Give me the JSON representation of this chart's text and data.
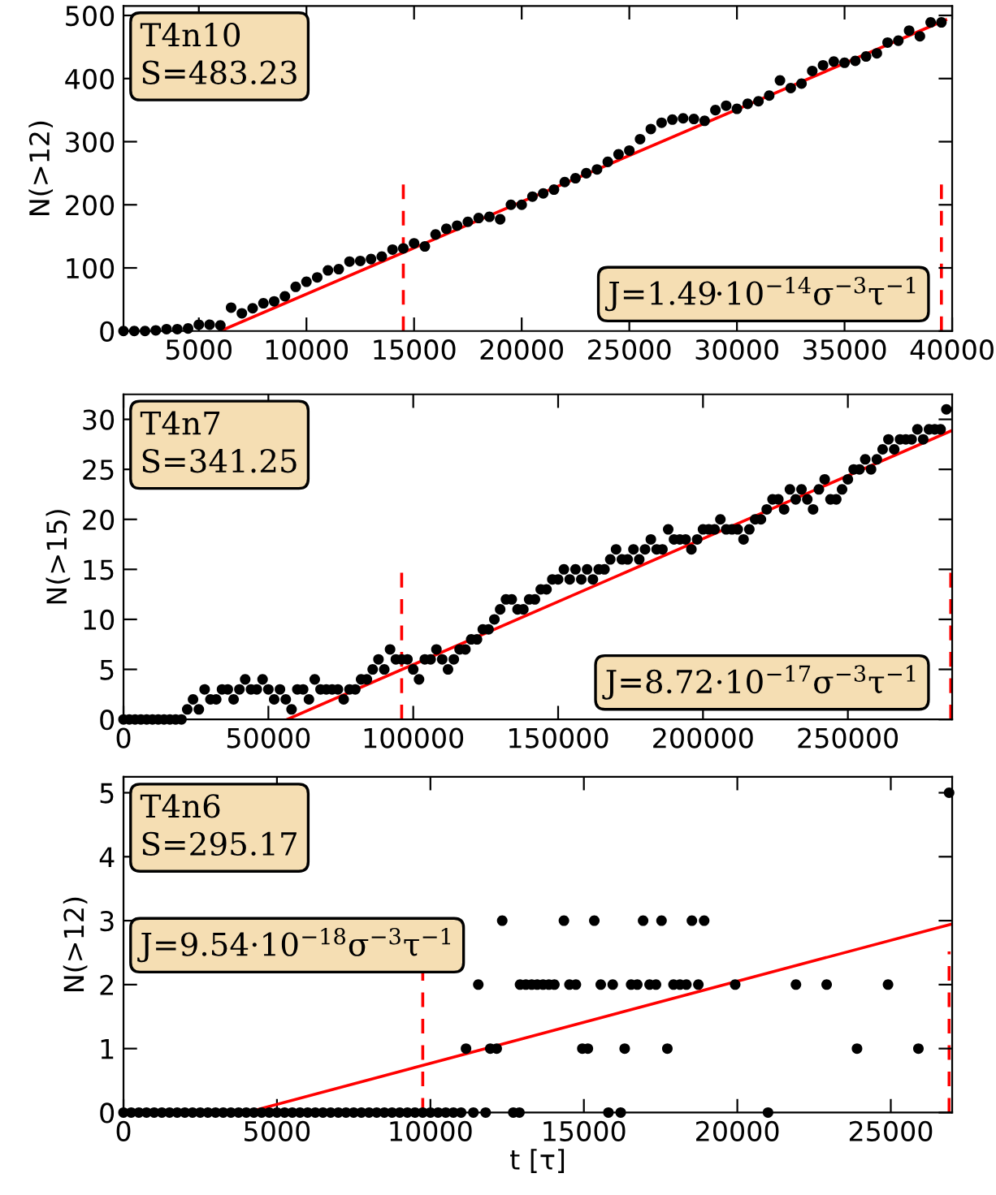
{
  "chart_data": [
    {
      "type": "scatter",
      "ylabel": "N(>12)",
      "annotations": [
        "T4n10\nS=483.23",
        "J=1.49·10$^{−14}$σ$^{−3}$τ$^{−1}$"
      ],
      "xlim": [
        1500,
        40000
      ],
      "ylim": [
        0,
        515
      ],
      "xticks": [
        5000,
        10000,
        15000,
        20000,
        25000,
        30000,
        35000,
        40000
      ],
      "yticks": [
        0,
        100,
        200,
        300,
        400,
        500
      ],
      "ref_lines": [
        {
          "axis": "x",
          "value": 14500,
          "color": "#ff0000",
          "line_style": "dashed"
        },
        {
          "axis": "x",
          "value": 39500,
          "color": "#ff0000",
          "line_style": "dashed"
        }
      ],
      "series": [
        {
          "marker": "circle",
          "color": "#000000",
          "x": [
            1500,
            2000,
            2500,
            3000,
            3500,
            4000,
            4500,
            5000,
            5500,
            6000,
            6500,
            7000,
            7500,
            8000,
            8500,
            9000,
            9500,
            10000,
            10500,
            11000,
            11500,
            12000,
            12500,
            13000,
            13500,
            14000,
            14500,
            15000,
            15500,
            16000,
            16500,
            17000,
            17500,
            18000,
            18500,
            19000,
            19500,
            20000,
            20500,
            21000,
            21500,
            22000,
            22500,
            23000,
            23500,
            24000,
            24500,
            25000,
            25500,
            26000,
            26500,
            27000,
            27500,
            28000,
            28500,
            29000,
            29500,
            30000,
            30500,
            31000,
            31500,
            32000,
            32500,
            33000,
            33500,
            34000,
            34500,
            35000,
            35500,
            36000,
            36500,
            37000,
            37500,
            38000,
            38500,
            39000,
            39500
          ],
          "values": [
            0,
            0,
            0,
            1,
            3,
            3,
            4,
            10,
            10,
            9,
            37,
            28,
            36,
            44,
            47,
            55,
            70,
            78,
            85,
            96,
            98,
            110,
            111,
            114,
            118,
            129,
            131,
            139,
            134,
            153,
            162,
            167,
            173,
            179,
            181,
            177,
            200,
            200,
            213,
            218,
            224,
            236,
            242,
            250,
            256,
            268,
            280,
            286,
            304,
            320,
            330,
            335,
            337,
            336,
            333,
            350,
            357,
            352,
            360,
            364,
            373,
            397,
            385,
            392,
            412,
            421,
            427,
            425,
            428,
            435,
            440,
            457,
            460,
            476,
            467,
            489,
            489
          ]
        },
        {
          "type": "line",
          "color": "#ff0000",
          "x": [
            6000,
            39700
          ],
          "values": [
            0,
            493
          ]
        }
      ]
    },
    {
      "type": "scatter",
      "ylabel": "N(>15)",
      "annotations": [
        "T4n7\nS=341.25",
        "J=8.72·10$^{−17}$σ$^{−3}$τ$^{−1}$"
      ],
      "xlim": [
        0,
        286000
      ],
      "ylim": [
        0,
        32.5
      ],
      "xticks": [
        0,
        50000,
        100000,
        150000,
        200000,
        250000
      ],
      "yticks": [
        0,
        5,
        10,
        15,
        20,
        25,
        30
      ],
      "ref_lines": [
        {
          "axis": "x",
          "value": 96000,
          "color": "#ff0000",
          "line_style": "dashed"
        },
        {
          "axis": "x",
          "value": 285500,
          "color": "#ff0000",
          "line_style": "dashed"
        }
      ],
      "series": [
        {
          "marker": "circle",
          "color": "#000000",
          "x": [
            0,
            2000,
            4000,
            6000,
            8000,
            10000,
            12000,
            14000,
            16000,
            18000,
            20000,
            22000,
            24000,
            26000,
            28000,
            30000,
            32000,
            34000,
            36000,
            38000,
            40000,
            42000,
            44000,
            46000,
            48000,
            50000,
            52000,
            54000,
            56000,
            58000,
            60000,
            62000,
            64000,
            66000,
            68000,
            70000,
            72000,
            74000,
            76000,
            78000,
            80000,
            82000,
            84000,
            86000,
            88000,
            90000,
            92000,
            94000,
            96000,
            98000,
            100000,
            102000,
            104000,
            106000,
            108000,
            110000,
            112000,
            114000,
            116000,
            118000,
            120000,
            122000,
            124000,
            126000,
            128000,
            130000,
            132000,
            134000,
            136000,
            138000,
            140000,
            142000,
            144000,
            146000,
            148000,
            150000,
            152000,
            154000,
            156000,
            158000,
            160000,
            162000,
            164000,
            166000,
            168000,
            170000,
            172000,
            174000,
            176000,
            178000,
            180000,
            182000,
            184000,
            186000,
            188000,
            190000,
            192000,
            194000,
            196000,
            198000,
            200000,
            202000,
            204000,
            206000,
            208000,
            210000,
            212000,
            214000,
            216000,
            218000,
            220000,
            222000,
            224000,
            226000,
            228000,
            230000,
            232000,
            234000,
            236000,
            238000,
            240000,
            242000,
            244000,
            246000,
            248000,
            250000,
            252000,
            254000,
            256000,
            258000,
            260000,
            262000,
            264000,
            266000,
            268000,
            270000,
            272000,
            274000,
            276000,
            278000,
            280000,
            282000,
            284000
          ],
          "values": [
            0,
            0,
            0,
            0,
            0,
            0,
            0,
            0,
            0,
            0,
            0,
            1,
            2,
            1,
            3,
            2,
            2,
            3,
            3,
            2,
            3,
            4,
            3,
            3,
            4,
            3,
            2,
            3,
            2,
            1,
            3,
            3,
            2,
            4,
            3,
            3,
            3,
            3,
            2,
            3,
            3,
            4,
            4,
            5,
            6,
            5,
            7,
            6,
            6,
            6,
            5,
            4,
            6,
            6,
            7,
            6,
            5,
            6,
            7,
            7,
            8,
            8,
            9,
            9,
            10,
            11,
            12,
            12,
            11,
            11,
            12,
            12,
            13,
            13,
            14,
            14,
            15,
            14,
            15,
            14,
            15,
            14,
            15,
            15,
            16,
            17,
            16,
            16,
            17,
            16,
            17,
            18,
            17,
            17,
            19,
            18,
            18,
            18,
            17,
            18,
            19,
            19,
            19,
            20,
            19,
            19,
            19,
            18,
            19,
            20,
            20,
            21,
            22,
            22,
            21,
            23,
            22,
            23,
            22,
            21,
            23,
            24,
            22,
            22,
            23,
            24,
            25,
            25,
            26,
            25,
            26,
            27,
            28,
            27,
            28,
            28,
            28,
            29,
            28,
            29,
            29,
            29,
            31
          ]
        },
        {
          "type": "line",
          "color": "#ff0000",
          "x": [
            56500,
            286000
          ],
          "values": [
            0,
            28.9
          ]
        }
      ]
    },
    {
      "type": "scatter",
      "ylabel": "N(>12)",
      "xlabel": "t [τ]",
      "annotations": [
        "T4n6\nS=295.17",
        "J=9.54·10$^{−18}$σ$^{−3}$τ$^{−1}$"
      ],
      "xlim": [
        0,
        27000
      ],
      "ylim": [
        0,
        5.25
      ],
      "xticks": [
        0,
        5000,
        10000,
        15000,
        20000,
        25000
      ],
      "yticks": [
        0,
        1,
        2,
        3,
        4,
        5
      ],
      "ref_lines": [
        {
          "axis": "x",
          "value": 9750,
          "color": "#ff0000",
          "line_style": "dashed"
        },
        {
          "axis": "x",
          "value": 26900,
          "color": "#ff0000",
          "line_style": "dashed"
        }
      ],
      "series": [
        {
          "marker": "circle",
          "color": "#000000",
          "x": [
            0,
            250,
            500,
            750,
            1000,
            1250,
            1500,
            1750,
            2000,
            2250,
            2500,
            2750,
            3000,
            3250,
            3500,
            3750,
            4000,
            4250,
            4500,
            4750,
            5000,
            5250,
            5500,
            5750,
            6000,
            6250,
            6500,
            6750,
            7000,
            7250,
            7500,
            7750,
            8000,
            8250,
            8500,
            8750,
            9000,
            9250,
            9500,
            9750,
            10000,
            10250,
            10500,
            10750,
            11000,
            11400,
            11800,
            12700,
            12900,
            15800,
            16200,
            21000,
            11160,
            11950,
            12160,
            14950,
            15130,
            16330,
            17720,
            23900,
            25900,
            11560,
            12920,
            13110,
            13300,
            13480,
            13670,
            13860,
            14040,
            14530,
            14740,
            15550,
            15940,
            16540,
            16740,
            17140,
            17350,
            17920,
            18130,
            18340,
            18730,
            19930,
            21910,
            22910,
            24910,
            12340,
            14350,
            15340,
            16930,
            17530,
            18520,
            18920,
            26900
          ],
          "values": [
            0,
            0,
            0,
            0,
            0,
            0,
            0,
            0,
            0,
            0,
            0,
            0,
            0,
            0,
            0,
            0,
            0,
            0,
            0,
            0,
            0,
            0,
            0,
            0,
            0,
            0,
            0,
            0,
            0,
            0,
            0,
            0,
            0,
            0,
            0,
            0,
            0,
            0,
            0,
            0,
            0,
            0,
            0,
            0,
            0,
            0,
            0,
            0,
            0,
            0,
            0,
            0,
            1,
            1,
            1,
            1,
            1,
            1,
            1,
            1,
            1,
            2,
            2,
            2,
            2,
            2,
            2,
            2,
            2,
            2,
            2,
            2,
            2,
            2,
            2,
            2,
            2,
            2,
            2,
            2,
            2,
            2,
            2,
            2,
            2,
            3,
            3,
            3,
            3,
            3,
            3,
            3,
            5
          ]
        },
        {
          "type": "line",
          "color": "#ff0000",
          "x": [
            4000,
            27000
          ],
          "values": [
            0,
            2.95
          ]
        }
      ]
    }
  ]
}
